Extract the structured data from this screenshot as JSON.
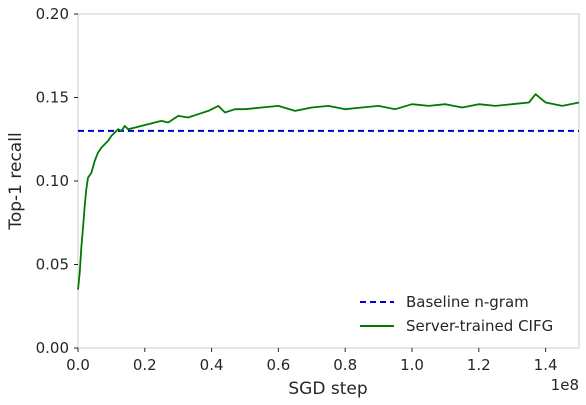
{
  "chart_data": {
    "type": "line",
    "title": "",
    "xlabel": "SGD step",
    "ylabel": "Top-1 recall",
    "x_offset_label": "1e8",
    "xlim": [
      0.0,
      1.5
    ],
    "ylim": [
      0.0,
      0.2
    ],
    "xticks": [
      0.0,
      0.2,
      0.4,
      0.6,
      0.8,
      1.0,
      1.2,
      1.4
    ],
    "xtick_labels": [
      "0.0",
      "0.2",
      "0.4",
      "0.6",
      "0.8",
      "1.0",
      "1.2",
      "1.4"
    ],
    "yticks": [
      0.0,
      0.05,
      0.1,
      0.15,
      0.2
    ],
    "ytick_labels": [
      "0.00",
      "0.05",
      "0.10",
      "0.15",
      "0.20"
    ],
    "grid": false,
    "legend_position": "bottom-right",
    "series": [
      {
        "name": "Baseline n-gram",
        "color": "#0000cc",
        "style": "dashed",
        "x": [
          0.0,
          1.5
        ],
        "y": [
          0.13,
          0.13
        ]
      },
      {
        "name": "Server-trained CIFG",
        "color": "#007a00",
        "style": "solid",
        "x": [
          0.0,
          0.005,
          0.01,
          0.015,
          0.02,
          0.025,
          0.03,
          0.04,
          0.05,
          0.06,
          0.07,
          0.08,
          0.09,
          0.1,
          0.11,
          0.12,
          0.13,
          0.14,
          0.15,
          0.17,
          0.19,
          0.21,
          0.23,
          0.25,
          0.27,
          0.3,
          0.33,
          0.36,
          0.39,
          0.42,
          0.44,
          0.47,
          0.5,
          0.55,
          0.6,
          0.65,
          0.7,
          0.75,
          0.8,
          0.85,
          0.9,
          0.95,
          1.0,
          1.05,
          1.1,
          1.15,
          1.2,
          1.25,
          1.3,
          1.35,
          1.37,
          1.4,
          1.45,
          1.5
        ],
        "y": [
          0.035,
          0.045,
          0.06,
          0.072,
          0.085,
          0.095,
          0.102,
          0.105,
          0.112,
          0.117,
          0.12,
          0.122,
          0.124,
          0.127,
          0.129,
          0.131,
          0.13,
          0.133,
          0.131,
          0.132,
          0.133,
          0.134,
          0.135,
          0.136,
          0.135,
          0.139,
          0.138,
          0.14,
          0.142,
          0.145,
          0.141,
          0.143,
          0.143,
          0.144,
          0.145,
          0.142,
          0.144,
          0.145,
          0.143,
          0.144,
          0.145,
          0.143,
          0.146,
          0.145,
          0.146,
          0.144,
          0.146,
          0.145,
          0.146,
          0.147,
          0.152,
          0.147,
          0.145,
          0.147
        ]
      }
    ]
  }
}
